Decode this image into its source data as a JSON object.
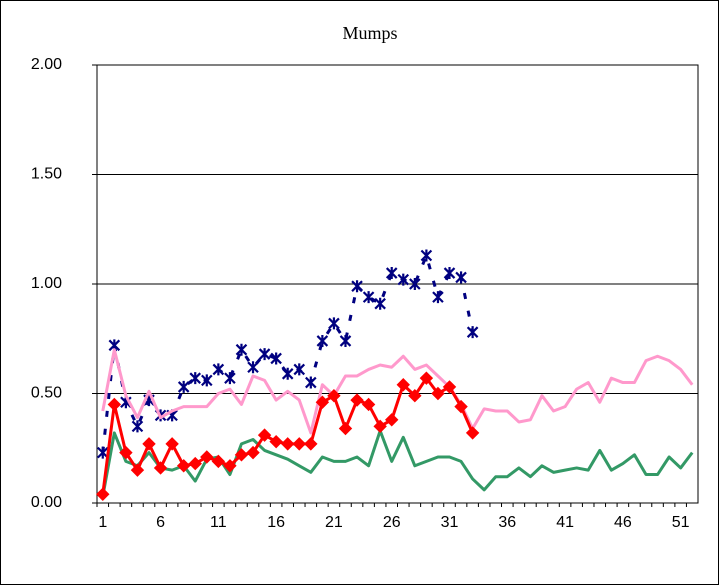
{
  "chart_data": {
    "type": "line",
    "title": "Mumps",
    "categories": [
      "1",
      null,
      null,
      null,
      null,
      "6",
      null,
      null,
      null,
      null,
      "11",
      null,
      null,
      null,
      null,
      "16",
      null,
      null,
      null,
      null,
      "21",
      null,
      null,
      null,
      null,
      "26",
      null,
      null,
      null,
      null,
      "31",
      null,
      null,
      null,
      null,
      "36",
      null,
      null,
      null,
      null,
      "41",
      null,
      null,
      null,
      null,
      "46",
      null,
      null,
      null,
      null,
      "51",
      null
    ],
    "ylim": [
      0,
      2
    ],
    "yticks": [
      {
        "value": 0,
        "label": "0.00"
      },
      {
        "value": 0.5,
        "label": "0.50"
      },
      {
        "value": 1,
        "label": "1.00"
      },
      {
        "value": 1.5,
        "label": "1.50"
      },
      {
        "value": 2,
        "label": "2.00"
      }
    ],
    "grid": true,
    "series": [
      {
        "color": "#000080",
        "marker": "asterisk",
        "dashed": true,
        "values": [
          0.23,
          0.72,
          0.46,
          0.35,
          0.47,
          0.4,
          0.4,
          0.53,
          0.57,
          0.56,
          0.61,
          0.57,
          0.7,
          0.62,
          0.68,
          0.66,
          0.59,
          0.61,
          0.55,
          0.74,
          0.82,
          0.74,
          0.99,
          0.94,
          0.91,
          1.05,
          1.02,
          1.0,
          1.13,
          0.94,
          1.05,
          1.03,
          0.78,
          null,
          null,
          null,
          null,
          null,
          null,
          null,
          null,
          null,
          null,
          null,
          null,
          null,
          null,
          null,
          null,
          null,
          null,
          null
        ]
      },
      {
        "color": "#ff99cc",
        "values": [
          0.42,
          0.7,
          0.49,
          0.39,
          0.51,
          0.39,
          0.42,
          0.44,
          0.44,
          0.44,
          0.5,
          0.52,
          0.45,
          0.58,
          0.56,
          0.47,
          0.51,
          0.47,
          0.32,
          0.54,
          0.49,
          0.58,
          0.58,
          0.61,
          0.63,
          0.62,
          0.67,
          0.61,
          0.63,
          0.58,
          0.53,
          0.45,
          0.34,
          0.43,
          0.42,
          0.42,
          0.37,
          0.38,
          0.49,
          0.42,
          0.44,
          0.52,
          0.55,
          0.46,
          0.57,
          0.55,
          0.55,
          0.65,
          0.67,
          0.65,
          0.61,
          0.54
        ]
      },
      {
        "color": "#339966",
        "values": [
          0.03,
          0.32,
          0.19,
          0.17,
          0.23,
          0.16,
          0.15,
          0.17,
          0.1,
          0.2,
          0.21,
          0.13,
          0.27,
          0.29,
          0.24,
          0.22,
          0.2,
          0.17,
          0.14,
          0.21,
          0.19,
          0.19,
          0.21,
          0.17,
          0.33,
          0.19,
          0.3,
          0.17,
          0.19,
          0.21,
          0.21,
          0.19,
          0.11,
          0.06,
          0.12,
          0.12,
          0.16,
          0.12,
          0.17,
          0.14,
          0.15,
          0.16,
          0.15,
          0.24,
          0.15,
          0.18,
          0.22,
          0.13,
          0.13,
          0.21,
          0.16,
          0.23
        ]
      },
      {
        "color": "#ff0000",
        "marker": "diamond",
        "values": [
          0.04,
          0.45,
          0.23,
          0.15,
          0.27,
          0.16,
          0.27,
          0.17,
          0.18,
          0.21,
          0.19,
          0.17,
          0.22,
          0.23,
          0.31,
          0.28,
          0.27,
          0.27,
          0.27,
          0.46,
          0.49,
          0.34,
          0.47,
          0.45,
          0.35,
          0.38,
          0.54,
          0.49,
          0.57,
          0.5,
          0.53,
          0.44,
          0.32,
          null,
          null,
          null,
          null,
          null,
          null,
          null,
          null,
          null,
          null,
          null,
          null,
          null,
          null,
          null,
          null,
          null,
          null,
          null
        ]
      }
    ]
  }
}
